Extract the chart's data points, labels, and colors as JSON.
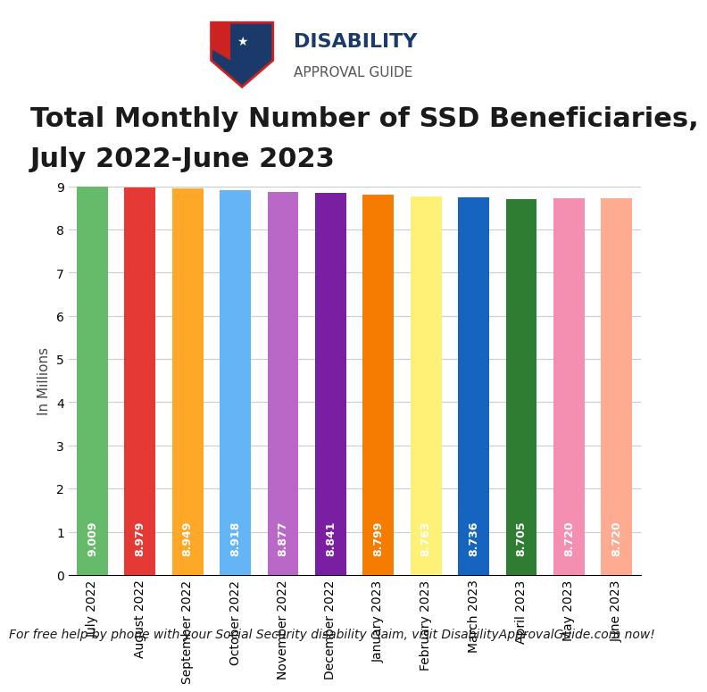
{
  "title_line1": "Total Monthly Number of SSD Beneficiaries,",
  "title_line2": "July 2022-June 2023",
  "ylabel": "In Millions",
  "categories": [
    "July 2022",
    "August 2022",
    "September 2022",
    "October 2022",
    "November 2022",
    "December 2022",
    "January 2023",
    "February 2023",
    "March 2023",
    "April 2023",
    "May 2023",
    "June 2023"
  ],
  "values": [
    9.009,
    8.979,
    8.949,
    8.918,
    8.877,
    8.841,
    8.799,
    8.763,
    8.736,
    8.705,
    8.72,
    8.72
  ],
  "bar_colors": [
    "#66BB6A",
    "#E53935",
    "#FFA726",
    "#64B5F6",
    "#BA68C8",
    "#7B1FA2",
    "#F57C00",
    "#FFF176",
    "#1565C0",
    "#2E7D32",
    "#F48FB1",
    "#FFAB91"
  ],
  "ylim": [
    0,
    9
  ],
  "yticks": [
    0,
    1,
    2,
    3,
    4,
    5,
    6,
    7,
    8,
    9
  ],
  "footer_text": "For free help by phone with your Social Security disability claim, visit DisabilityApprovalGuide.com now!",
  "background_color": "#ffffff",
  "label_color": "#ffffff",
  "title_color": "#1a1a1a",
  "footer_color": "#1a1a1a",
  "title_fontsize": 22,
  "bar_label_fontsize": 9,
  "ylabel_fontsize": 11,
  "footer_fontsize": 10,
  "tick_fontsize": 10
}
